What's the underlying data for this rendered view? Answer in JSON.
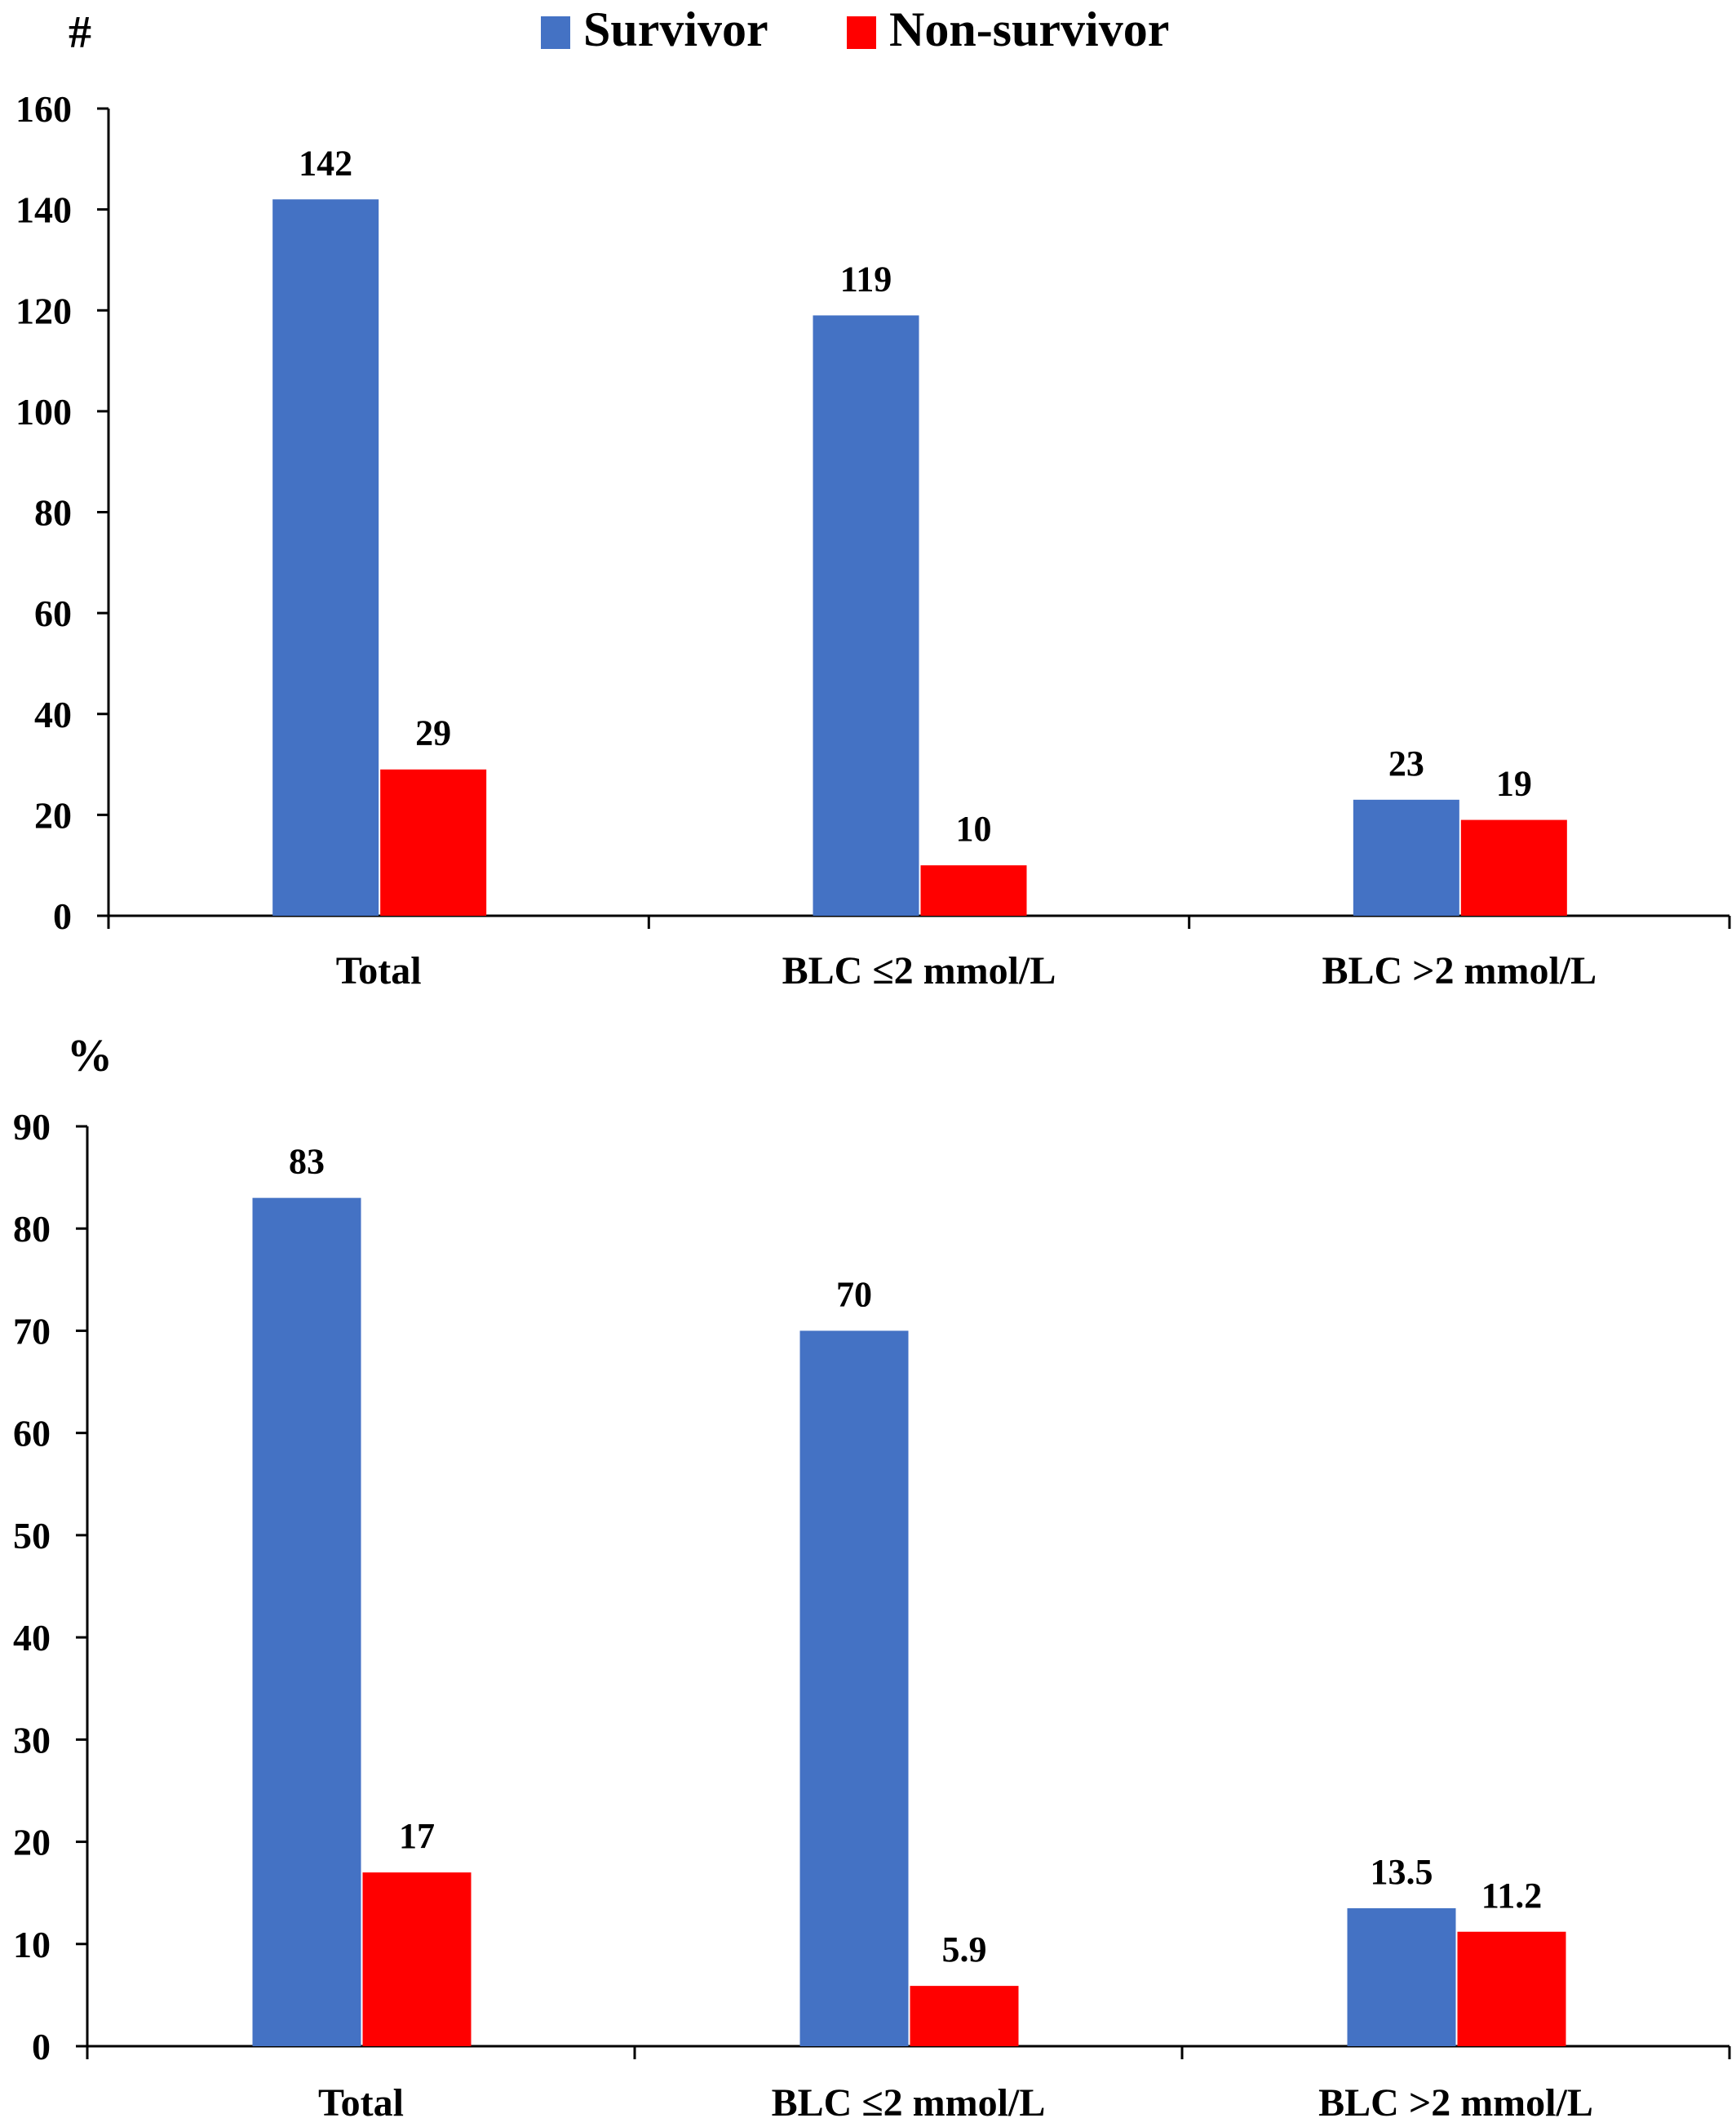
{
  "legend": {
    "items": [
      {
        "label": "Survivor",
        "color": "#4472c4"
      },
      {
        "label": "Non-survivor",
        "color": "#ff0000"
      }
    ],
    "placement": "top-center"
  },
  "chart_data": [
    {
      "type": "bar",
      "ylabel": "#",
      "ylim": [
        0,
        160
      ],
      "yticks": [
        0,
        20,
        40,
        60,
        80,
        100,
        120,
        140,
        160
      ],
      "categories": [
        "Total",
        "BLC ≤2 mmol/L",
        "BLC >2 mmol/L"
      ],
      "series": [
        {
          "name": "Survivor",
          "color": "#4472c4",
          "values": [
            142,
            119,
            23
          ],
          "labels": [
            "142",
            "119",
            "23"
          ]
        },
        {
          "name": "Non-survivor",
          "color": "#ff0000",
          "values": [
            29,
            10,
            19
          ],
          "labels": [
            "29",
            "10",
            "19"
          ]
        }
      ],
      "grid": false
    },
    {
      "type": "bar",
      "ylabel": "%",
      "ylim": [
        0,
        90
      ],
      "yticks": [
        0,
        10,
        20,
        30,
        40,
        50,
        60,
        70,
        80,
        90
      ],
      "categories": [
        "Total",
        "BLC ≤2 mmol/L",
        "BLC >2 mmol/L"
      ],
      "series": [
        {
          "name": "Survivor",
          "color": "#4472c4",
          "values": [
            83,
            70,
            13.5
          ],
          "labels": [
            "83",
            "70",
            "13.5"
          ]
        },
        {
          "name": "Non-survivor",
          "color": "#ff0000",
          "values": [
            17,
            5.9,
            11.2
          ],
          "labels": [
            "17",
            "5.9",
            "11.2"
          ]
        }
      ],
      "grid": false
    }
  ]
}
